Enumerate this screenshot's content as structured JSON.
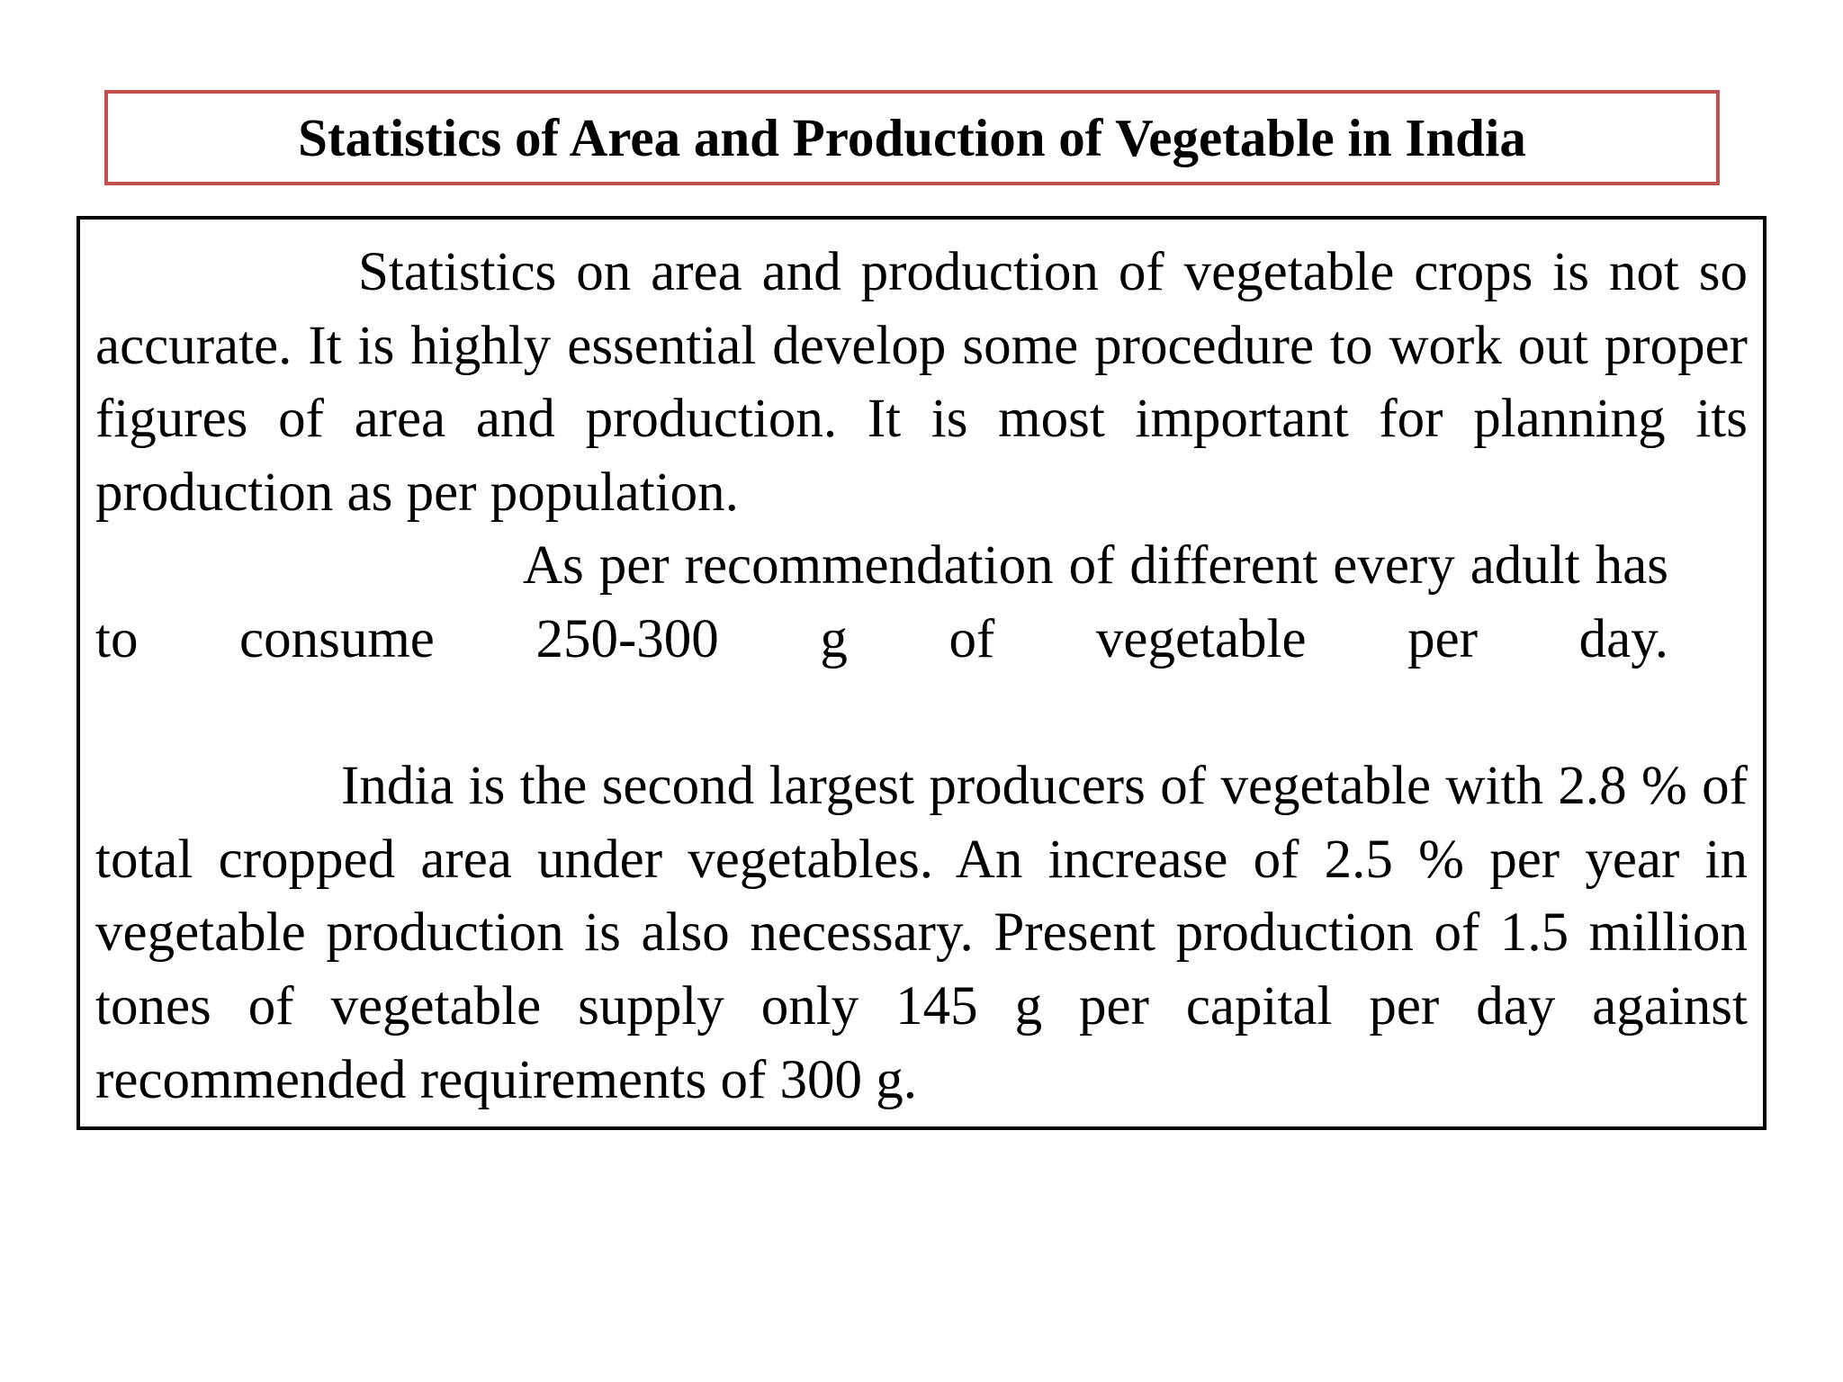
{
  "title": "Statistics of Area and Production of Vegetable in India",
  "colors": {
    "title_border": "#c0504d",
    "text_border": "#000000"
  },
  "paragraphs": [
    "Statistics on area and production of vegetable crops is not so accurate. It is highly essential develop some procedure to work out proper figures of area and production. It is most important for planning its production as per population.",
    "As per recommendation of different every adult has to consume 250-300 g of vegetable per day.",
    "India is the second largest producers of vegetable with 2.8 % of total cropped area under vegetables. An increase of 2.5 % per year in vegetable production is also necessary. Present production of 1.5 million tones of vegetable supply only 145 g per capital per day against recommended requirements of 300 g."
  ]
}
